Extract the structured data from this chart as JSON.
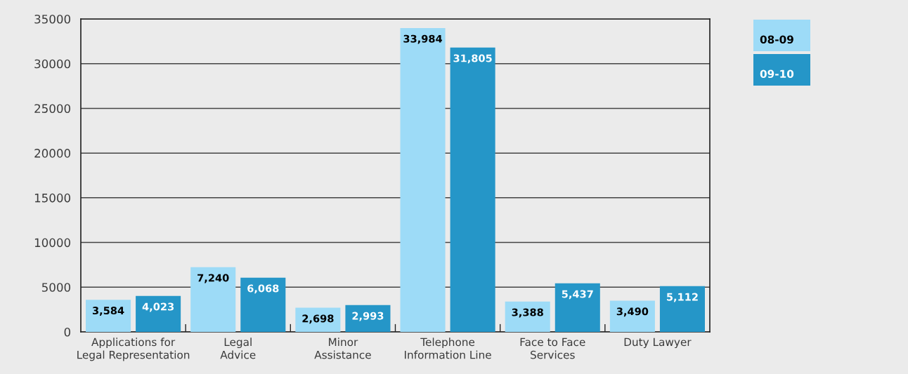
{
  "chart_data": {
    "type": "bar",
    "categories": [
      "Applications for\nLegal Representation",
      "Legal\nAdvice",
      "Minor\nAssistance",
      "Telephone\nInformation Line",
      "Face to Face\nServices",
      "Duty Lawyer"
    ],
    "series": [
      {
        "name": "08-09",
        "color": "#9ddbf7",
        "values": [
          3584,
          7240,
          2698,
          33984,
          3388,
          3490
        ],
        "value_labels": [
          "3,584",
          "7,240",
          "2,698",
          "33,984",
          "3,388",
          "3,490"
        ]
      },
      {
        "name": "09-10",
        "color": "#2596c8",
        "values": [
          4023,
          6068,
          2993,
          31805,
          5437,
          5112
        ],
        "value_labels": [
          "4,023",
          "6,068",
          "2,993",
          "31,805",
          "5,437",
          "5,112"
        ]
      }
    ],
    "ylim": [
      0,
      35000
    ],
    "yticks": [
      0,
      5000,
      10000,
      15000,
      20000,
      25000,
      30000,
      35000
    ],
    "grid": "y",
    "legend": "top right"
  }
}
